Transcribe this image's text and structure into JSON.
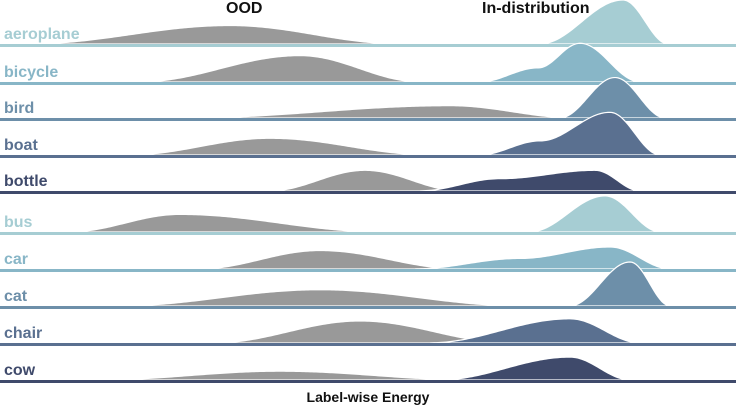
{
  "chart_data": {
    "type": "ridgeline",
    "title_left": "OOD",
    "title_right": "In-distribution",
    "xlabel": "Label-wise Energy",
    "ood_color": "#999999",
    "series": [
      {
        "label": "aeroplane",
        "color": "#a6cdd3",
        "ood": [
          [
            30,
            0.004
          ],
          [
            230,
            0.42
          ],
          [
            400,
            0.004
          ]
        ],
        "ind": [
          [
            540,
            0.004
          ],
          [
            623,
            1.0
          ],
          [
            668,
            0.004
          ]
        ]
      },
      {
        "label": "bicycle",
        "color": "#88b6c7",
        "ood": [
          [
            140,
            0.004
          ],
          [
            300,
            0.6
          ],
          [
            420,
            0.004
          ]
        ],
        "ind": [
          [
            480,
            0.004
          ],
          [
            538,
            0.32
          ],
          [
            580,
            0.88
          ],
          [
            640,
            0.004
          ]
        ]
      },
      {
        "label": "bird",
        "color": "#6d8fa9",
        "ood": [
          [
            190,
            0.004
          ],
          [
            450,
            0.28
          ],
          [
            575,
            0.004
          ]
        ],
        "ind": [
          [
            560,
            0.004
          ],
          [
            615,
            0.92
          ],
          [
            665,
            0.004
          ]
        ]
      },
      {
        "label": "boat",
        "color": "#5a7090",
        "ood": [
          [
            130,
            0.004
          ],
          [
            270,
            0.38
          ],
          [
            430,
            0.004
          ]
        ],
        "ind": [
          [
            480,
            0.004
          ],
          [
            540,
            0.32
          ],
          [
            610,
            0.97
          ],
          [
            660,
            0.004
          ]
        ]
      },
      {
        "label": "bottle",
        "color": "#3f4a6b",
        "ood": [
          [
            270,
            0.004
          ],
          [
            365,
            0.47
          ],
          [
            460,
            0.004
          ]
        ],
        "ind": [
          [
            420,
            0.004
          ],
          [
            500,
            0.28
          ],
          [
            595,
            0.47
          ],
          [
            640,
            0.004
          ]
        ]
      },
      {
        "label": "bus",
        "color": "#a6cdd3",
        "ood": [
          [
            70,
            0.004
          ],
          [
            180,
            0.4
          ],
          [
            380,
            0.004
          ]
        ],
        "ind": [
          [
            530,
            0.004
          ],
          [
            605,
            0.82
          ],
          [
            660,
            0.004
          ]
        ]
      },
      {
        "label": "car",
        "color": "#88b6c7",
        "ood": [
          [
            200,
            0.004
          ],
          [
            320,
            0.42
          ],
          [
            460,
            0.004
          ]
        ],
        "ind": [
          [
            415,
            0.004
          ],
          [
            520,
            0.24
          ],
          [
            610,
            0.5
          ],
          [
            670,
            0.004
          ]
        ]
      },
      {
        "label": "cat",
        "color": "#6d8fa9",
        "ood": [
          [
            120,
            0.004
          ],
          [
            320,
            0.37
          ],
          [
            520,
            0.004
          ]
        ],
        "ind": [
          [
            570,
            0.004
          ],
          [
            630,
            1.0
          ],
          [
            670,
            0.004
          ]
        ]
      },
      {
        "label": "chair",
        "color": "#5a7090",
        "ood": [
          [
            215,
            0.004
          ],
          [
            360,
            0.5
          ],
          [
            510,
            0.004
          ]
        ],
        "ind": [
          [
            430,
            0.004
          ],
          [
            570,
            0.55
          ],
          [
            640,
            0.004
          ]
        ]
      },
      {
        "label": "cow",
        "color": "#3f4a6b",
        "ood": [
          [
            100,
            0.004
          ],
          [
            280,
            0.2
          ],
          [
            470,
            0.004
          ]
        ],
        "ind": [
          [
            440,
            0.004
          ],
          [
            570,
            0.52
          ],
          [
            630,
            0.004
          ]
        ]
      }
    ]
  }
}
